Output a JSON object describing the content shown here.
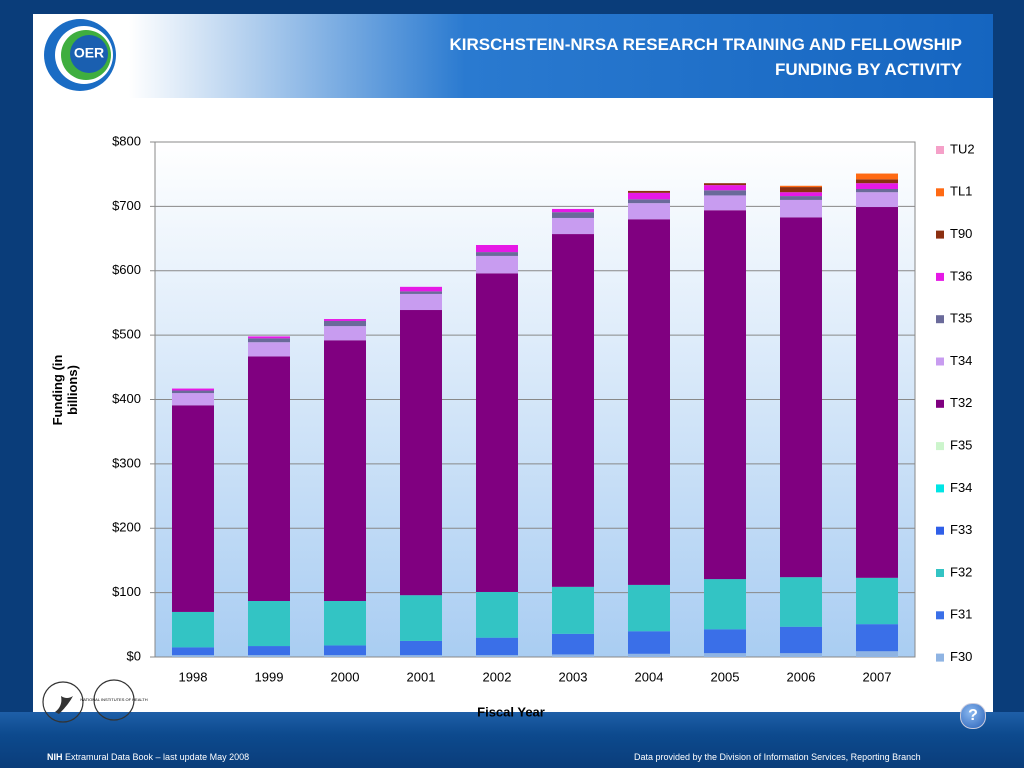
{
  "slide": {
    "logo_text": "OER",
    "seal_text": "NATIONAL INSTITUTES OF HEALTH",
    "footer_left_bold": "NIH",
    "footer_left": "Extramural Data Book – last update May 2008",
    "footer_right": "Data provided by the Division of Information Services, Reporting Branch",
    "help": "?"
  },
  "chart_data": {
    "type": "stacked_bar",
    "title": "KIRSCHSTEIN-NRSA RESEARCH TRAINING AND FELLOWSHIP FUNDING BY ACTIVITY",
    "ylabel": "Funding (in billions)",
    "xlabel": "Fiscal Year",
    "categories": [
      "1998",
      "1999",
      "2000",
      "2001",
      "2002",
      "2003",
      "2004",
      "2005",
      "2006",
      "2007"
    ],
    "ylim": [
      0,
      800
    ],
    "yticks": [
      {
        "value": 0,
        "label": "$0"
      },
      {
        "value": 100,
        "label": "$100"
      },
      {
        "value": 200,
        "label": "$200"
      },
      {
        "value": 300,
        "label": "$300"
      },
      {
        "value": 400,
        "label": "$400"
      },
      {
        "value": 500,
        "label": "$500"
      },
      {
        "value": 600,
        "label": "$600"
      },
      {
        "value": 700,
        "label": "$700"
      },
      {
        "value": 800,
        "label": "$800"
      }
    ],
    "grid": true,
    "legend": "right",
    "series": [
      {
        "name": "F30",
        "color": "#8fb4e3",
        "values": [
          3,
          3,
          3,
          3,
          3,
          4,
          5,
          6,
          6,
          9
        ]
      },
      {
        "name": "F31",
        "color": "#3a6fe8",
        "values": [
          12,
          14,
          15,
          22,
          27,
          32,
          35,
          37,
          41,
          42
        ]
      },
      {
        "name": "F32",
        "color": "#33c4c4",
        "values": [
          55,
          70,
          69,
          71,
          71,
          73,
          72,
          78,
          77,
          72
        ]
      },
      {
        "name": "F33",
        "color": "#2f5fe8",
        "values": [
          0,
          0,
          0,
          0,
          0,
          0,
          0,
          0,
          0,
          0
        ]
      },
      {
        "name": "F34",
        "color": "#00e5e5",
        "values": [
          0,
          0,
          0,
          0,
          0,
          0,
          0,
          0,
          0,
          0
        ]
      },
      {
        "name": "F35",
        "color": "#ccf5cc",
        "values": [
          0,
          0,
          0,
          0,
          0,
          0,
          0,
          0,
          0,
          0
        ]
      },
      {
        "name": "T32",
        "color": "#800080",
        "values": [
          321,
          380,
          405,
          443,
          495,
          548,
          568,
          573,
          559,
          576
        ]
      },
      {
        "name": "T34",
        "color": "#c89cf0",
        "values": [
          19,
          22,
          22,
          25,
          27,
          25,
          25,
          23,
          27,
          23
        ]
      },
      {
        "name": "T35",
        "color": "#6a6a9a",
        "values": [
          4,
          6,
          8,
          4,
          6,
          9,
          6,
          8,
          6,
          5
        ]
      },
      {
        "name": "T36",
        "color": "#e619e6",
        "values": [
          3,
          3,
          3,
          7,
          11,
          5,
          10,
          8,
          6,
          9
        ]
      },
      {
        "name": "T90",
        "color": "#8b2f10",
        "values": [
          0,
          0,
          0,
          0,
          0,
          0,
          3,
          3,
          8,
          6
        ]
      },
      {
        "name": "TL1",
        "color": "#ff6a13",
        "values": [
          0,
          0,
          0,
          0,
          0,
          0,
          0,
          0,
          2,
          9
        ]
      },
      {
        "name": "TU2",
        "color": "#f5a0c8",
        "values": [
          0,
          0,
          0,
          0,
          0,
          0,
          0,
          0,
          0,
          0
        ]
      }
    ]
  }
}
